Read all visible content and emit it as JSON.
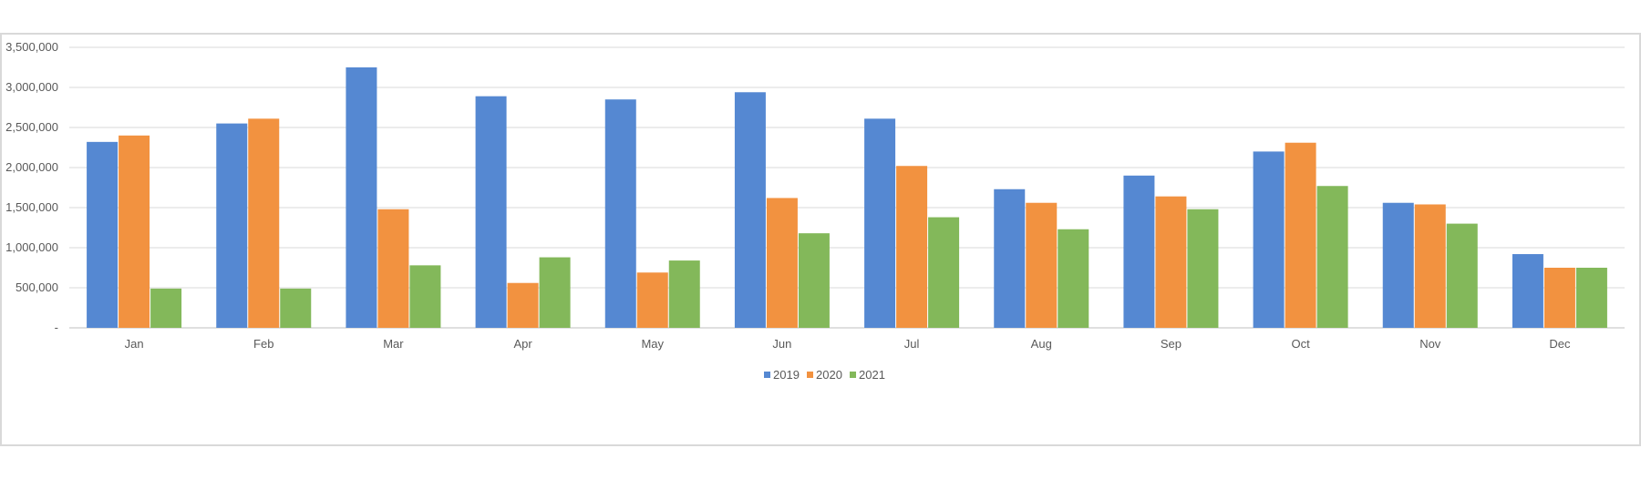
{
  "chart_data": {
    "type": "bar",
    "title": "",
    "xlabel": "",
    "ylabel": "",
    "categories": [
      "Jan",
      "Feb",
      "Mar",
      "Apr",
      "May",
      "Jun",
      "Jul",
      "Aug",
      "Sep",
      "Oct",
      "Nov",
      "Dec"
    ],
    "ylim": [
      0,
      3500000
    ],
    "yticks": [
      0,
      500000,
      1000000,
      1500000,
      2000000,
      2500000,
      3000000,
      3500000
    ],
    "ytick_labels": [
      "-",
      "500,000",
      "1,000,000",
      "1,500,000",
      "2,000,000",
      "2,500,000",
      "3,000,000",
      "3,500,000"
    ],
    "grid": true,
    "legend_position": "bottom",
    "series": [
      {
        "name": "2019",
        "color": "#5588d2",
        "values": [
          2320000,
          2550000,
          3250000,
          2890000,
          2850000,
          2940000,
          2610000,
          1730000,
          1900000,
          2200000,
          1560000,
          920000
        ]
      },
      {
        "name": "2020",
        "color": "#f29240",
        "values": [
          2400000,
          2610000,
          1480000,
          560000,
          690000,
          1620000,
          2020000,
          1560000,
          1640000,
          2310000,
          1540000,
          750000
        ]
      },
      {
        "name": "2021",
        "color": "#83b85a",
        "values": [
          490000,
          490000,
          780000,
          880000,
          840000,
          1180000,
          1380000,
          1230000,
          1480000,
          1770000,
          1300000,
          750000
        ]
      }
    ]
  }
}
